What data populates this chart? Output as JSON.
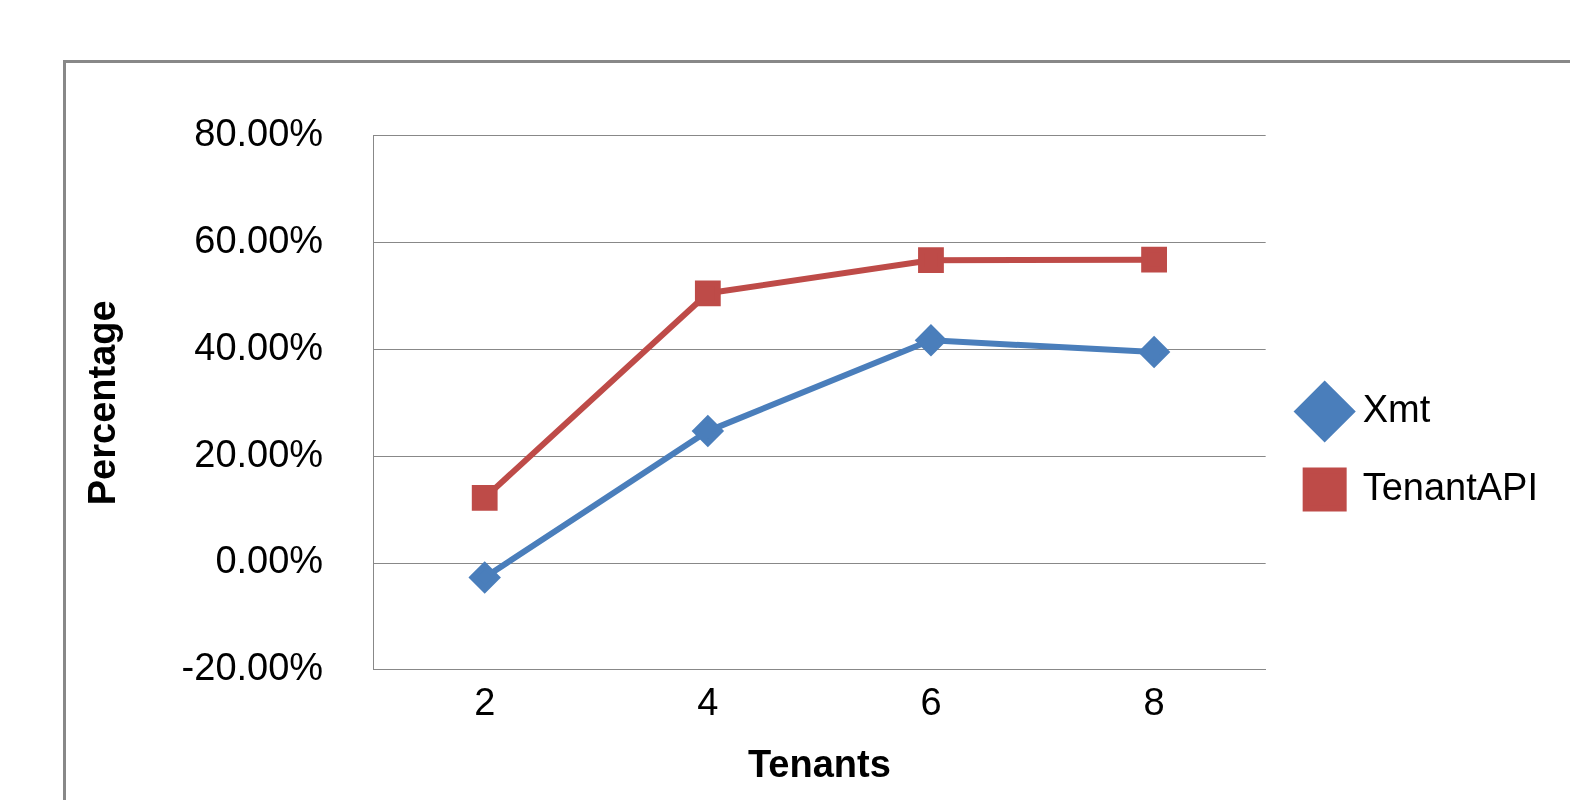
{
  "chart_data": {
    "type": "line",
    "xlabel": "Tenants",
    "ylabel": "Percentage",
    "categories": [
      "2",
      "4",
      "6",
      "8"
    ],
    "series": [
      {
        "name": "Xmt",
        "color": "#4a7ebb",
        "values": [
          -2.7,
          24.7,
          41.7,
          39.5
        ],
        "marker": "diamond"
      },
      {
        "name": "TenantAPI",
        "color": "#be4b48",
        "values": [
          12.2,
          50.5,
          56.7,
          56.8
        ],
        "marker": "square"
      }
    ],
    "ylim": [
      -20,
      80
    ],
    "yticks": [
      {
        "value": -20,
        "label": "-20.00%"
      },
      {
        "value": 0,
        "label": "0.00%"
      },
      {
        "value": 20,
        "label": "20.00%"
      },
      {
        "value": 40,
        "label": "40.00%"
      },
      {
        "value": 60,
        "label": "60.00%"
      },
      {
        "value": 80,
        "label": "80.00%"
      }
    ],
    "grid": "y",
    "legend": "right",
    "line_style": "solid"
  }
}
